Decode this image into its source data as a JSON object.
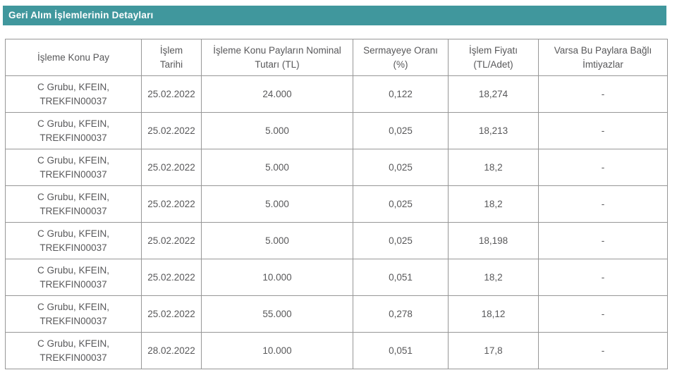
{
  "page": {
    "title": "Geri Alım İşlemlerinin Detayları"
  },
  "colors": {
    "title_bar_background": "#40979d",
    "title_bar_text": "#ffffff",
    "table_border": "#979797",
    "cell_text": "#58585a"
  },
  "table": {
    "columns": [
      "İşleme Konu Pay",
      "İşlem Tarihi",
      "İşleme Konu Payların Nominal Tutarı (TL)",
      "Sermayeye Oranı (%)",
      "İşlem Fiyatı (TL/Adet)",
      "Varsa Bu Paylara Bağlı İmtiyazlar"
    ],
    "rows": [
      [
        "C Grubu, KFEIN, TREKFIN00037",
        "25.02.2022",
        "24.000",
        "0,122",
        "18,274",
        "-"
      ],
      [
        "C Grubu, KFEIN, TREKFIN00037",
        "25.02.2022",
        "5.000",
        "0,025",
        "18,213",
        "-"
      ],
      [
        "C Grubu, KFEIN, TREKFIN00037",
        "25.02.2022",
        "5.000",
        "0,025",
        "18,2",
        "-"
      ],
      [
        "C Grubu, KFEIN, TREKFIN00037",
        "25.02.2022",
        "5.000",
        "0,025",
        "18,2",
        "-"
      ],
      [
        "C Grubu, KFEIN, TREKFIN00037",
        "25.02.2022",
        "5.000",
        "0,025",
        "18,198",
        "-"
      ],
      [
        "C Grubu, KFEIN, TREKFIN00037",
        "25.02.2022",
        "10.000",
        "0,051",
        "18,2",
        "-"
      ],
      [
        "C Grubu, KFEIN, TREKFIN00037",
        "25.02.2022",
        "55.000",
        "0,278",
        "18,12",
        "-"
      ],
      [
        "C Grubu, KFEIN, TREKFIN00037",
        "28.02.2022",
        "10.000",
        "0,051",
        "17,8",
        "-"
      ]
    ],
    "cell_names": [
      "cell-subject-share",
      "cell-transaction-date",
      "cell-nominal-amount",
      "cell-capital-ratio",
      "cell-transaction-price",
      "cell-privileges"
    ]
  }
}
